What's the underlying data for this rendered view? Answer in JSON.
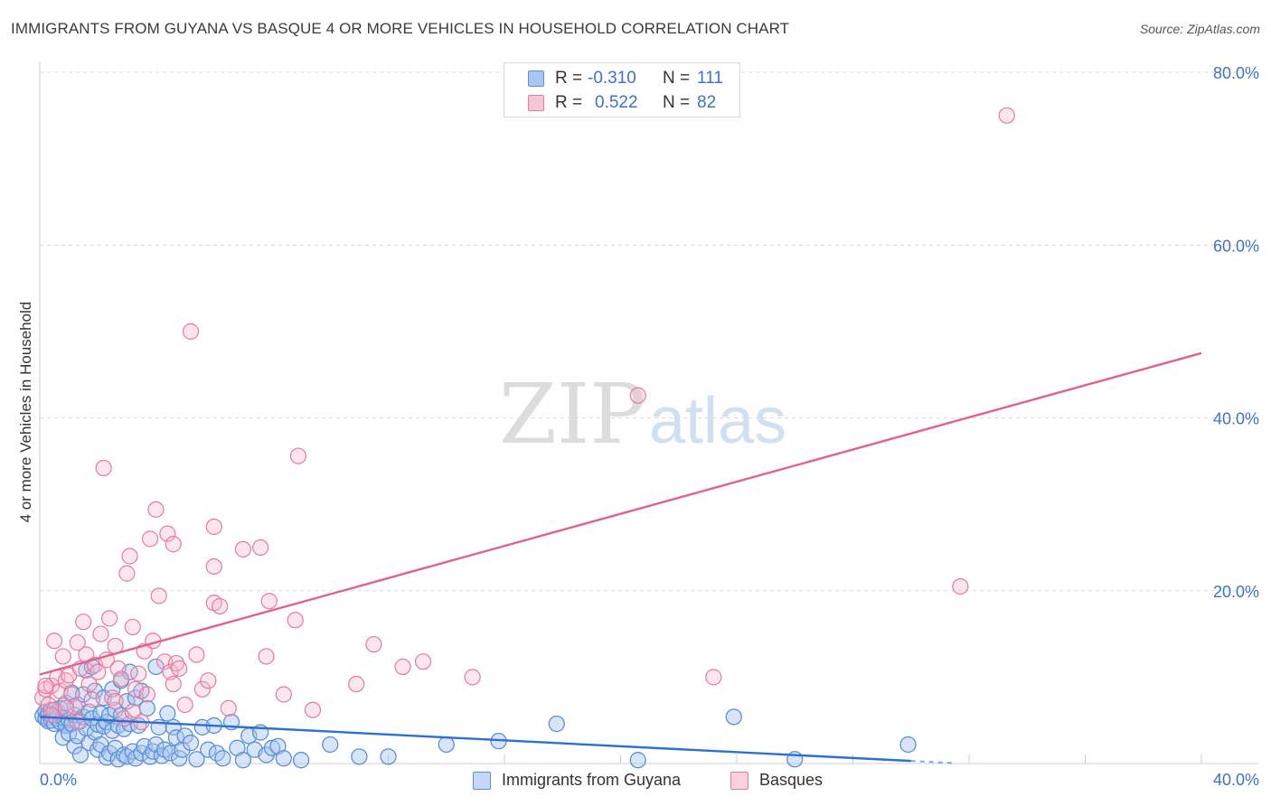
{
  "header": {
    "title": "IMMIGRANTS FROM GUYANA VS BASQUE 4 OR MORE VEHICLES IN HOUSEHOLD CORRELATION CHART",
    "source": "Source: ZipAtlas.com"
  },
  "legend": {
    "rows": [
      {
        "r_label": "R =",
        "r_value": "-0.310",
        "n_label": "N =",
        "n_value": "111"
      },
      {
        "r_label": "R =",
        "r_value": "0.522",
        "n_label": "N =",
        "n_value": "82"
      }
    ]
  },
  "bottom_legend": {
    "items": [
      {
        "label": "Immigrants from Guyana"
      },
      {
        "label": "Basques"
      }
    ]
  },
  "watermark": {
    "zip": "ZIP",
    "atlas": "atlas"
  },
  "colors": {
    "blue_fill": "#a9c6f0",
    "blue_stroke": "#5b8fd6",
    "blue_line": "#2e6fd2",
    "pink_fill": "#f7b7cb",
    "pink_stroke": "#e57aa0",
    "pink_line": "#e0618d",
    "axis_text": "#3c73c8",
    "grid": "#d9d9d9"
  },
  "chart_data": {
    "type": "scatter",
    "title": "IMMIGRANTS FROM GUYANA VS BASQUE 4 OR MORE VEHICLES IN HOUSEHOLD CORRELATION CHART",
    "xlabel": "",
    "ylabel": "4 or more Vehicles in Household",
    "xlim": [
      0,
      40
    ],
    "ylim": [
      0,
      80
    ],
    "x_tick_labels": [
      "0.0%",
      "40.0%"
    ],
    "y_ticks": [
      20,
      40,
      60,
      80
    ],
    "y_tick_labels": [
      "20.0%",
      "40.0%",
      "60.0%",
      "80.0%"
    ],
    "series": [
      {
        "name": "Immigrants from Guyana",
        "r": -0.31,
        "n": 111,
        "trend": {
          "x": [
            0,
            30
          ],
          "y": [
            5.4,
            0.3
          ]
        },
        "points": [
          [
            0.1,
            5.5
          ],
          [
            0.2,
            6.0
          ],
          [
            0.2,
            5.2
          ],
          [
            0.3,
            5.8
          ],
          [
            0.3,
            4.9
          ],
          [
            0.4,
            6.2
          ],
          [
            0.4,
            5.0
          ],
          [
            0.5,
            5.5
          ],
          [
            0.5,
            4.6
          ],
          [
            0.6,
            6.0
          ],
          [
            0.6,
            5.2
          ],
          [
            0.7,
            4.8
          ],
          [
            0.7,
            6.4
          ],
          [
            0.8,
            5.3
          ],
          [
            0.8,
            3.0
          ],
          [
            0.9,
            4.4
          ],
          [
            0.9,
            7.0
          ],
          [
            1.0,
            5.0
          ],
          [
            1.0,
            3.5
          ],
          [
            1.1,
            8.2
          ],
          [
            1.1,
            4.6
          ],
          [
            1.2,
            2.0
          ],
          [
            1.2,
            5.6
          ],
          [
            1.3,
            6.8
          ],
          [
            1.3,
            3.2
          ],
          [
            1.4,
            4.9
          ],
          [
            1.4,
            1.0
          ],
          [
            1.5,
            8.0
          ],
          [
            1.5,
            5.4
          ],
          [
            1.6,
            10.8
          ],
          [
            1.6,
            4.1
          ],
          [
            1.7,
            6.0
          ],
          [
            1.7,
            2.4
          ],
          [
            1.8,
            5.2
          ],
          [
            1.8,
            11.2
          ],
          [
            1.9,
            3.6
          ],
          [
            1.9,
            8.4
          ],
          [
            2.0,
            4.5
          ],
          [
            2.0,
            1.6
          ],
          [
            2.1,
            5.8
          ],
          [
            2.1,
            2.2
          ],
          [
            2.2,
            4.3
          ],
          [
            2.2,
            7.6
          ],
          [
            2.3,
            0.7
          ],
          [
            2.3,
            4.8
          ],
          [
            2.4,
            5.6
          ],
          [
            2.4,
            1.2
          ],
          [
            2.5,
            8.6
          ],
          [
            2.5,
            3.8
          ],
          [
            2.6,
            6.2
          ],
          [
            2.6,
            1.8
          ],
          [
            2.7,
            4.4
          ],
          [
            2.7,
            0.5
          ],
          [
            2.8,
            9.6
          ],
          [
            2.8,
            5.6
          ],
          [
            2.9,
            1.0
          ],
          [
            2.9,
            4.0
          ],
          [
            3.0,
            7.2
          ],
          [
            3.0,
            0.8
          ],
          [
            3.1,
            10.6
          ],
          [
            3.1,
            4.6
          ],
          [
            3.2,
            1.4
          ],
          [
            3.3,
            7.6
          ],
          [
            3.3,
            0.6
          ],
          [
            3.4,
            4.4
          ],
          [
            3.5,
            8.4
          ],
          [
            3.5,
            1.2
          ],
          [
            3.6,
            2.0
          ],
          [
            3.7,
            6.4
          ],
          [
            3.8,
            0.8
          ],
          [
            3.9,
            1.4
          ],
          [
            4.0,
            11.2
          ],
          [
            4.0,
            2.2
          ],
          [
            4.1,
            4.2
          ],
          [
            4.2,
            0.9
          ],
          [
            4.3,
            1.6
          ],
          [
            4.4,
            5.8
          ],
          [
            4.5,
            1.2
          ],
          [
            4.6,
            4.2
          ],
          [
            4.7,
            3.0
          ],
          [
            4.8,
            0.6
          ],
          [
            4.9,
            1.6
          ],
          [
            5.0,
            3.2
          ],
          [
            5.2,
            2.4
          ],
          [
            5.4,
            0.5
          ],
          [
            5.6,
            4.2
          ],
          [
            5.8,
            1.6
          ],
          [
            6.0,
            4.4
          ],
          [
            6.1,
            1.2
          ],
          [
            6.3,
            0.6
          ],
          [
            6.6,
            4.8
          ],
          [
            6.8,
            1.8
          ],
          [
            7.0,
            0.4
          ],
          [
            7.2,
            3.2
          ],
          [
            7.4,
            1.6
          ],
          [
            7.6,
            3.6
          ],
          [
            7.8,
            1.0
          ],
          [
            8.0,
            1.8
          ],
          [
            8.2,
            2.0
          ],
          [
            8.4,
            0.6
          ],
          [
            9.0,
            0.4
          ],
          [
            10.0,
            2.2
          ],
          [
            11.0,
            0.8
          ],
          [
            12.0,
            0.8
          ],
          [
            14.0,
            2.2
          ],
          [
            15.8,
            2.6
          ],
          [
            17.8,
            4.6
          ],
          [
            20.6,
            0.4
          ],
          [
            23.9,
            5.4
          ],
          [
            29.9,
            2.2
          ],
          [
            26.0,
            0.5
          ]
        ]
      },
      {
        "name": "Basques",
        "r": 0.522,
        "n": 82,
        "trend": {
          "x": [
            0,
            40
          ],
          "y": [
            10.3,
            47.5
          ]
        },
        "points": [
          [
            0.1,
            7.6
          ],
          [
            0.2,
            8.6
          ],
          [
            0.3,
            6.8
          ],
          [
            0.4,
            9.0
          ],
          [
            0.5,
            14.2
          ],
          [
            0.5,
            6.2
          ],
          [
            0.6,
            10.0
          ],
          [
            0.7,
            8.4
          ],
          [
            0.8,
            12.4
          ],
          [
            0.9,
            9.6
          ],
          [
            1.0,
            10.2
          ],
          [
            1.1,
            8.0
          ],
          [
            1.2,
            6.6
          ],
          [
            1.3,
            14.0
          ],
          [
            1.4,
            11.0
          ],
          [
            1.5,
            16.4
          ],
          [
            1.6,
            12.6
          ],
          [
            1.7,
            9.2
          ],
          [
            1.8,
            7.4
          ],
          [
            1.9,
            11.4
          ],
          [
            2.0,
            10.6
          ],
          [
            2.1,
            15.0
          ],
          [
            2.2,
            34.2
          ],
          [
            2.3,
            12.0
          ],
          [
            2.4,
            16.8
          ],
          [
            2.5,
            7.6
          ],
          [
            2.6,
            13.6
          ],
          [
            2.7,
            11.0
          ],
          [
            2.8,
            9.8
          ],
          [
            2.9,
            5.2
          ],
          [
            3.0,
            22.0
          ],
          [
            3.1,
            24.0
          ],
          [
            3.2,
            15.8
          ],
          [
            3.3,
            8.6
          ],
          [
            3.4,
            10.4
          ],
          [
            3.5,
            4.8
          ],
          [
            3.6,
            13.0
          ],
          [
            3.7,
            8.0
          ],
          [
            3.8,
            26.0
          ],
          [
            3.9,
            14.2
          ],
          [
            4.0,
            29.4
          ],
          [
            4.1,
            19.4
          ],
          [
            4.3,
            11.8
          ],
          [
            4.4,
            26.6
          ],
          [
            4.5,
            10.6
          ],
          [
            4.6,
            25.4
          ],
          [
            4.7,
            11.6
          ],
          [
            4.8,
            11.0
          ],
          [
            5.0,
            6.8
          ],
          [
            5.2,
            50.0
          ],
          [
            5.4,
            12.6
          ],
          [
            5.6,
            8.6
          ],
          [
            5.8,
            9.6
          ],
          [
            6.0,
            18.6
          ],
          [
            6.0,
            27.4
          ],
          [
            6.0,
            22.8
          ],
          [
            6.2,
            18.2
          ],
          [
            6.5,
            6.4
          ],
          [
            7.0,
            24.8
          ],
          [
            7.6,
            25.0
          ],
          [
            7.8,
            12.4
          ],
          [
            7.9,
            18.8
          ],
          [
            8.4,
            8.0
          ],
          [
            8.8,
            16.6
          ],
          [
            8.9,
            35.6
          ],
          [
            9.4,
            6.2
          ],
          [
            10.9,
            9.2
          ],
          [
            11.5,
            13.8
          ],
          [
            12.5,
            11.2
          ],
          [
            13.2,
            11.8
          ],
          [
            14.9,
            10.0
          ],
          [
            20.6,
            42.6
          ],
          [
            23.2,
            10.0
          ],
          [
            31.7,
            20.5
          ],
          [
            33.3,
            75.0
          ],
          [
            0.2,
            9.0
          ],
          [
            0.4,
            5.6
          ],
          [
            0.9,
            6.4
          ],
          [
            1.3,
            4.8
          ],
          [
            2.6,
            7.2
          ],
          [
            3.2,
            6.0
          ],
          [
            4.6,
            9.2
          ]
        ]
      }
    ]
  }
}
